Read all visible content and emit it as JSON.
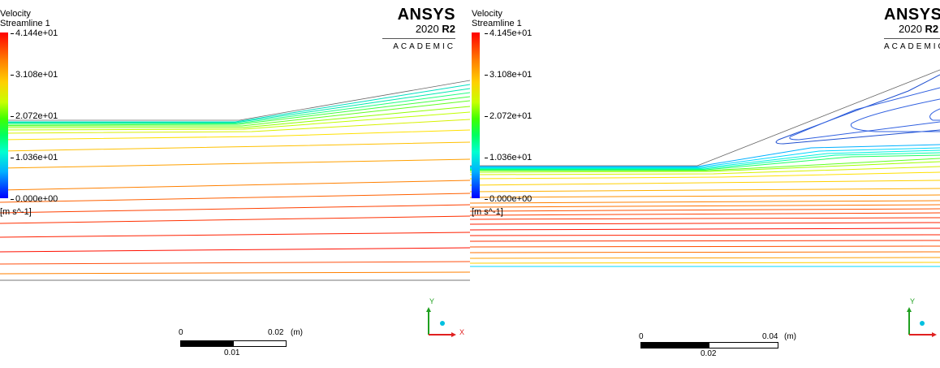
{
  "panels": [
    {
      "legend": {
        "title_line1": "Velocity",
        "title_line2": "Streamline 1",
        "ticks": [
          "4.144e+01",
          "3.108e+01",
          "2.072e+01",
          "1.036e+01",
          "0.000e+00"
        ],
        "units": "[m s^-1]"
      },
      "logo": {
        "brand": "ANSYS",
        "year": "2020",
        "release": "R2",
        "edition": "ACADEMIC"
      },
      "scale": {
        "left": "0",
        "right": "0.02",
        "unit": "(m)",
        "mid": "0.01"
      },
      "axes": {
        "y": "Y",
        "x": "X"
      }
    },
    {
      "legend": {
        "title_line1": "Velocity",
        "title_line2": "Streamline 1",
        "ticks": [
          "4.145e+01",
          "3.108e+01",
          "2.072e+01",
          "1.036e+01",
          "0.000e+00"
        ],
        "units": "[m s^-1]"
      },
      "logo": {
        "brand": "ANSYS",
        "year": "2020",
        "release": "R2",
        "edition": "ACADEMIC"
      },
      "scale": {
        "left": "0",
        "right": "0.04",
        "unit": "(m)",
        "mid": "0.02"
      },
      "axes": {
        "y": "Y"
      }
    }
  ],
  "colors": {
    "colormap": [
      "#0000ff",
      "#00b0ff",
      "#00ffd0",
      "#40ff00",
      "#ffd000",
      "#ff8000",
      "#ff0000"
    ],
    "axis_x": "#e02020",
    "axis_y": "#20a020",
    "axis_z": "#00c0e0"
  }
}
